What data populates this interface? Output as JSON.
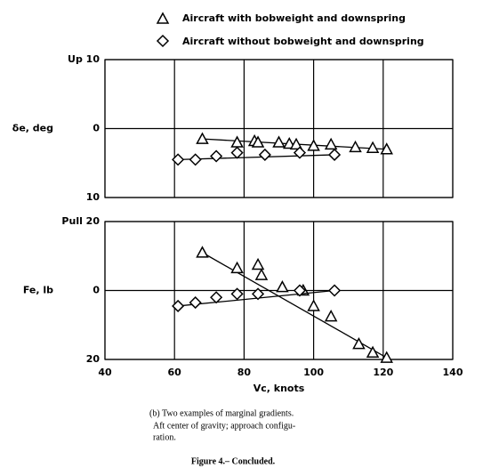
{
  "legend": {
    "entries": [
      "Aircraft with bobweight and downspring",
      "Aircraft without bobweight and downspring"
    ]
  },
  "chart_data": [
    {
      "type": "scatter",
      "ylabel": "δe, deg",
      "ylim": [
        -10,
        10
      ],
      "yticks": [
        {
          "value": 10,
          "label": "Up 10"
        },
        0,
        {
          "value": -10,
          "label": "10"
        }
      ],
      "grid": true,
      "series": [
        {
          "name": "Aircraft with bobweight and downspring",
          "marker": "triangle",
          "color": "#000",
          "x": [
            68,
            78,
            83,
            84,
            90,
            93,
            95,
            100,
            105,
            112,
            117,
            121
          ],
          "values": [
            -1.5,
            -2,
            -1.8,
            -2,
            -2,
            -2.2,
            -2.3,
            -2.5,
            -2.3,
            -2.7,
            -2.8,
            -3
          ]
        },
        {
          "name": "Aircraft without bobweight and downspring",
          "marker": "diamond",
          "color": "#000",
          "x": [
            61,
            66,
            72,
            78,
            86,
            96,
            106
          ],
          "values": [
            -4.5,
            -4.5,
            -4,
            -3.5,
            -3.8,
            -3.5,
            -3.8
          ]
        }
      ]
    },
    {
      "type": "scatter",
      "ylabel": "Fe, lb",
      "xlabel": "Vc, knots",
      "xlim": [
        40,
        140
      ],
      "xticks": [
        40,
        60,
        80,
        100,
        120,
        140
      ],
      "ylim": [
        -20,
        20
      ],
      "yticks": [
        {
          "value": 20,
          "label": "Pull 20"
        },
        0,
        {
          "value": -20,
          "label": "20"
        }
      ],
      "grid": true,
      "series": [
        {
          "marker": "triangle",
          "color": "#000",
          "x": [
            68,
            78,
            84,
            85,
            91,
            97,
            100,
            105,
            113,
            117,
            121
          ],
          "values": [
            11,
            6.5,
            7.5,
            4.5,
            1,
            0,
            -4.5,
            -7.5,
            -15.5,
            -18,
            -19.5
          ]
        },
        {
          "marker": "diamond",
          "color": "#000",
          "x": [
            61,
            66,
            72,
            78,
            84,
            96,
            106
          ],
          "values": [
            -4.5,
            -3.5,
            -2,
            -1,
            -1,
            0,
            0
          ]
        }
      ]
    }
  ],
  "caption": {
    "lines": [
      "(b) Two examples of marginal gradients.",
      "Aft center of gravity; approach configu-",
      "ration."
    ],
    "figure": "Figure 4.– Concluded."
  }
}
